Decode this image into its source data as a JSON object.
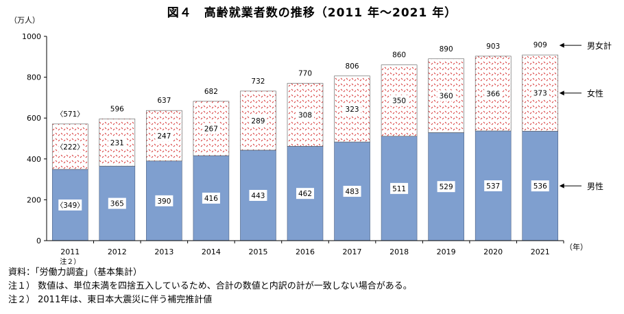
{
  "chart_data": {
    "type": "bar",
    "stacked": true,
    "title": "図４　高齢就業者数の推移（2011 年～2021 年）",
    "y_unit_label": "（万人）",
    "x_unit_label": "（年）",
    "ylim": [
      0,
      1000
    ],
    "yticks": [
      "0",
      "200",
      "400",
      "600",
      "800",
      "1000"
    ],
    "ytick_values": [
      0,
      200,
      400,
      600,
      800,
      1000
    ],
    "categories": [
      "2011",
      "2012",
      "2013",
      "2014",
      "2015",
      "2016",
      "2017",
      "2018",
      "2019",
      "2020",
      "2021"
    ],
    "category_notes": [
      "注２）",
      "",
      "",
      "",
      "",
      "",
      "",
      "",
      "",
      "",
      ""
    ],
    "series": [
      {
        "name": "男性",
        "color": "#7f9fcf",
        "values": [
          349,
          365,
          390,
          416,
          443,
          462,
          483,
          511,
          529,
          537,
          536
        ],
        "labels": [
          "〈349〉",
          "365",
          "390",
          "416",
          "443",
          "462",
          "483",
          "511",
          "529",
          "537",
          "536"
        ]
      },
      {
        "name": "女性",
        "color": "#d42a2a",
        "pattern": "dotted",
        "values": [
          222,
          231,
          247,
          267,
          289,
          308,
          323,
          350,
          360,
          366,
          373
        ],
        "labels": [
          "〈222〉",
          "231",
          "247",
          "267",
          "289",
          "308",
          "323",
          "350",
          "360",
          "366",
          "373"
        ]
      }
    ],
    "totals": {
      "name": "男女計",
      "values": [
        571,
        596,
        637,
        682,
        732,
        770,
        806,
        860,
        890,
        903,
        909
      ],
      "labels": [
        "〈571〉",
        "596",
        "637",
        "682",
        "732",
        "770",
        "806",
        "860",
        "890",
        "903",
        "909"
      ]
    },
    "grid": false
  },
  "notes": {
    "source": "資料：「労働力調査」（基本集計）",
    "note1": "注１）  数値は、単位未満を四捨五入しているため、合計の数値と内訳の計が一致しない場合がある。",
    "note2": "注２）  2011年は、東日本大震災に伴う補完推計値"
  }
}
